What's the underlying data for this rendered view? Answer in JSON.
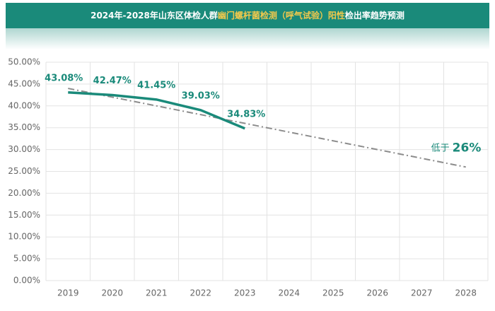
{
  "chart_data": {
    "type": "line",
    "title": [
      "2024年-2028年山东区体检人群",
      "幽门螺杆菌检测（呼气试验）阳性",
      "检出率趋势预测"
    ],
    "categories": [
      "2019",
      "2020",
      "2021",
      "2022",
      "2023",
      "2024",
      "2025",
      "2026",
      "2027",
      "2028"
    ],
    "series": [
      {
        "color": "#1a8a7a",
        "values": [
          43.08,
          42.47,
          41.45,
          39.03,
          34.83,
          null,
          null,
          null,
          null,
          null
        ],
        "value_labels": [
          "43.08%",
          "42.47%",
          "41.45%",
          "39.03%",
          "34.83%",
          null,
          null,
          null,
          null,
          null
        ]
      },
      {
        "color": "#8c8c8c",
        "dash": true,
        "values": [
          44.0,
          42.0,
          40.0,
          38.0,
          36.0,
          34.0,
          32.0,
          30.0,
          28.0,
          26.0
        ]
      }
    ],
    "annotation": {
      "text": "低于",
      "value": 26,
      "label": "26%"
    },
    "ylim": [
      0,
      50
    ],
    "yticks": [
      {
        "value": 0,
        "label": "0.00%"
      },
      {
        "value": 5,
        "label": "5.00%"
      },
      {
        "value": 10,
        "label": "10.00%"
      },
      {
        "value": 15,
        "label": "15.00%"
      },
      {
        "value": 20,
        "label": "20.00%"
      },
      {
        "value": 25,
        "label": "25.00%"
      },
      {
        "value": 30,
        "label": "30.00%"
      },
      {
        "value": 35,
        "label": "35.00%"
      },
      {
        "value": 40,
        "label": "40.00%"
      },
      {
        "value": 45,
        "label": "45.00%"
      },
      {
        "value": 50,
        "label": "50.00%"
      }
    ],
    "grid": true
  }
}
